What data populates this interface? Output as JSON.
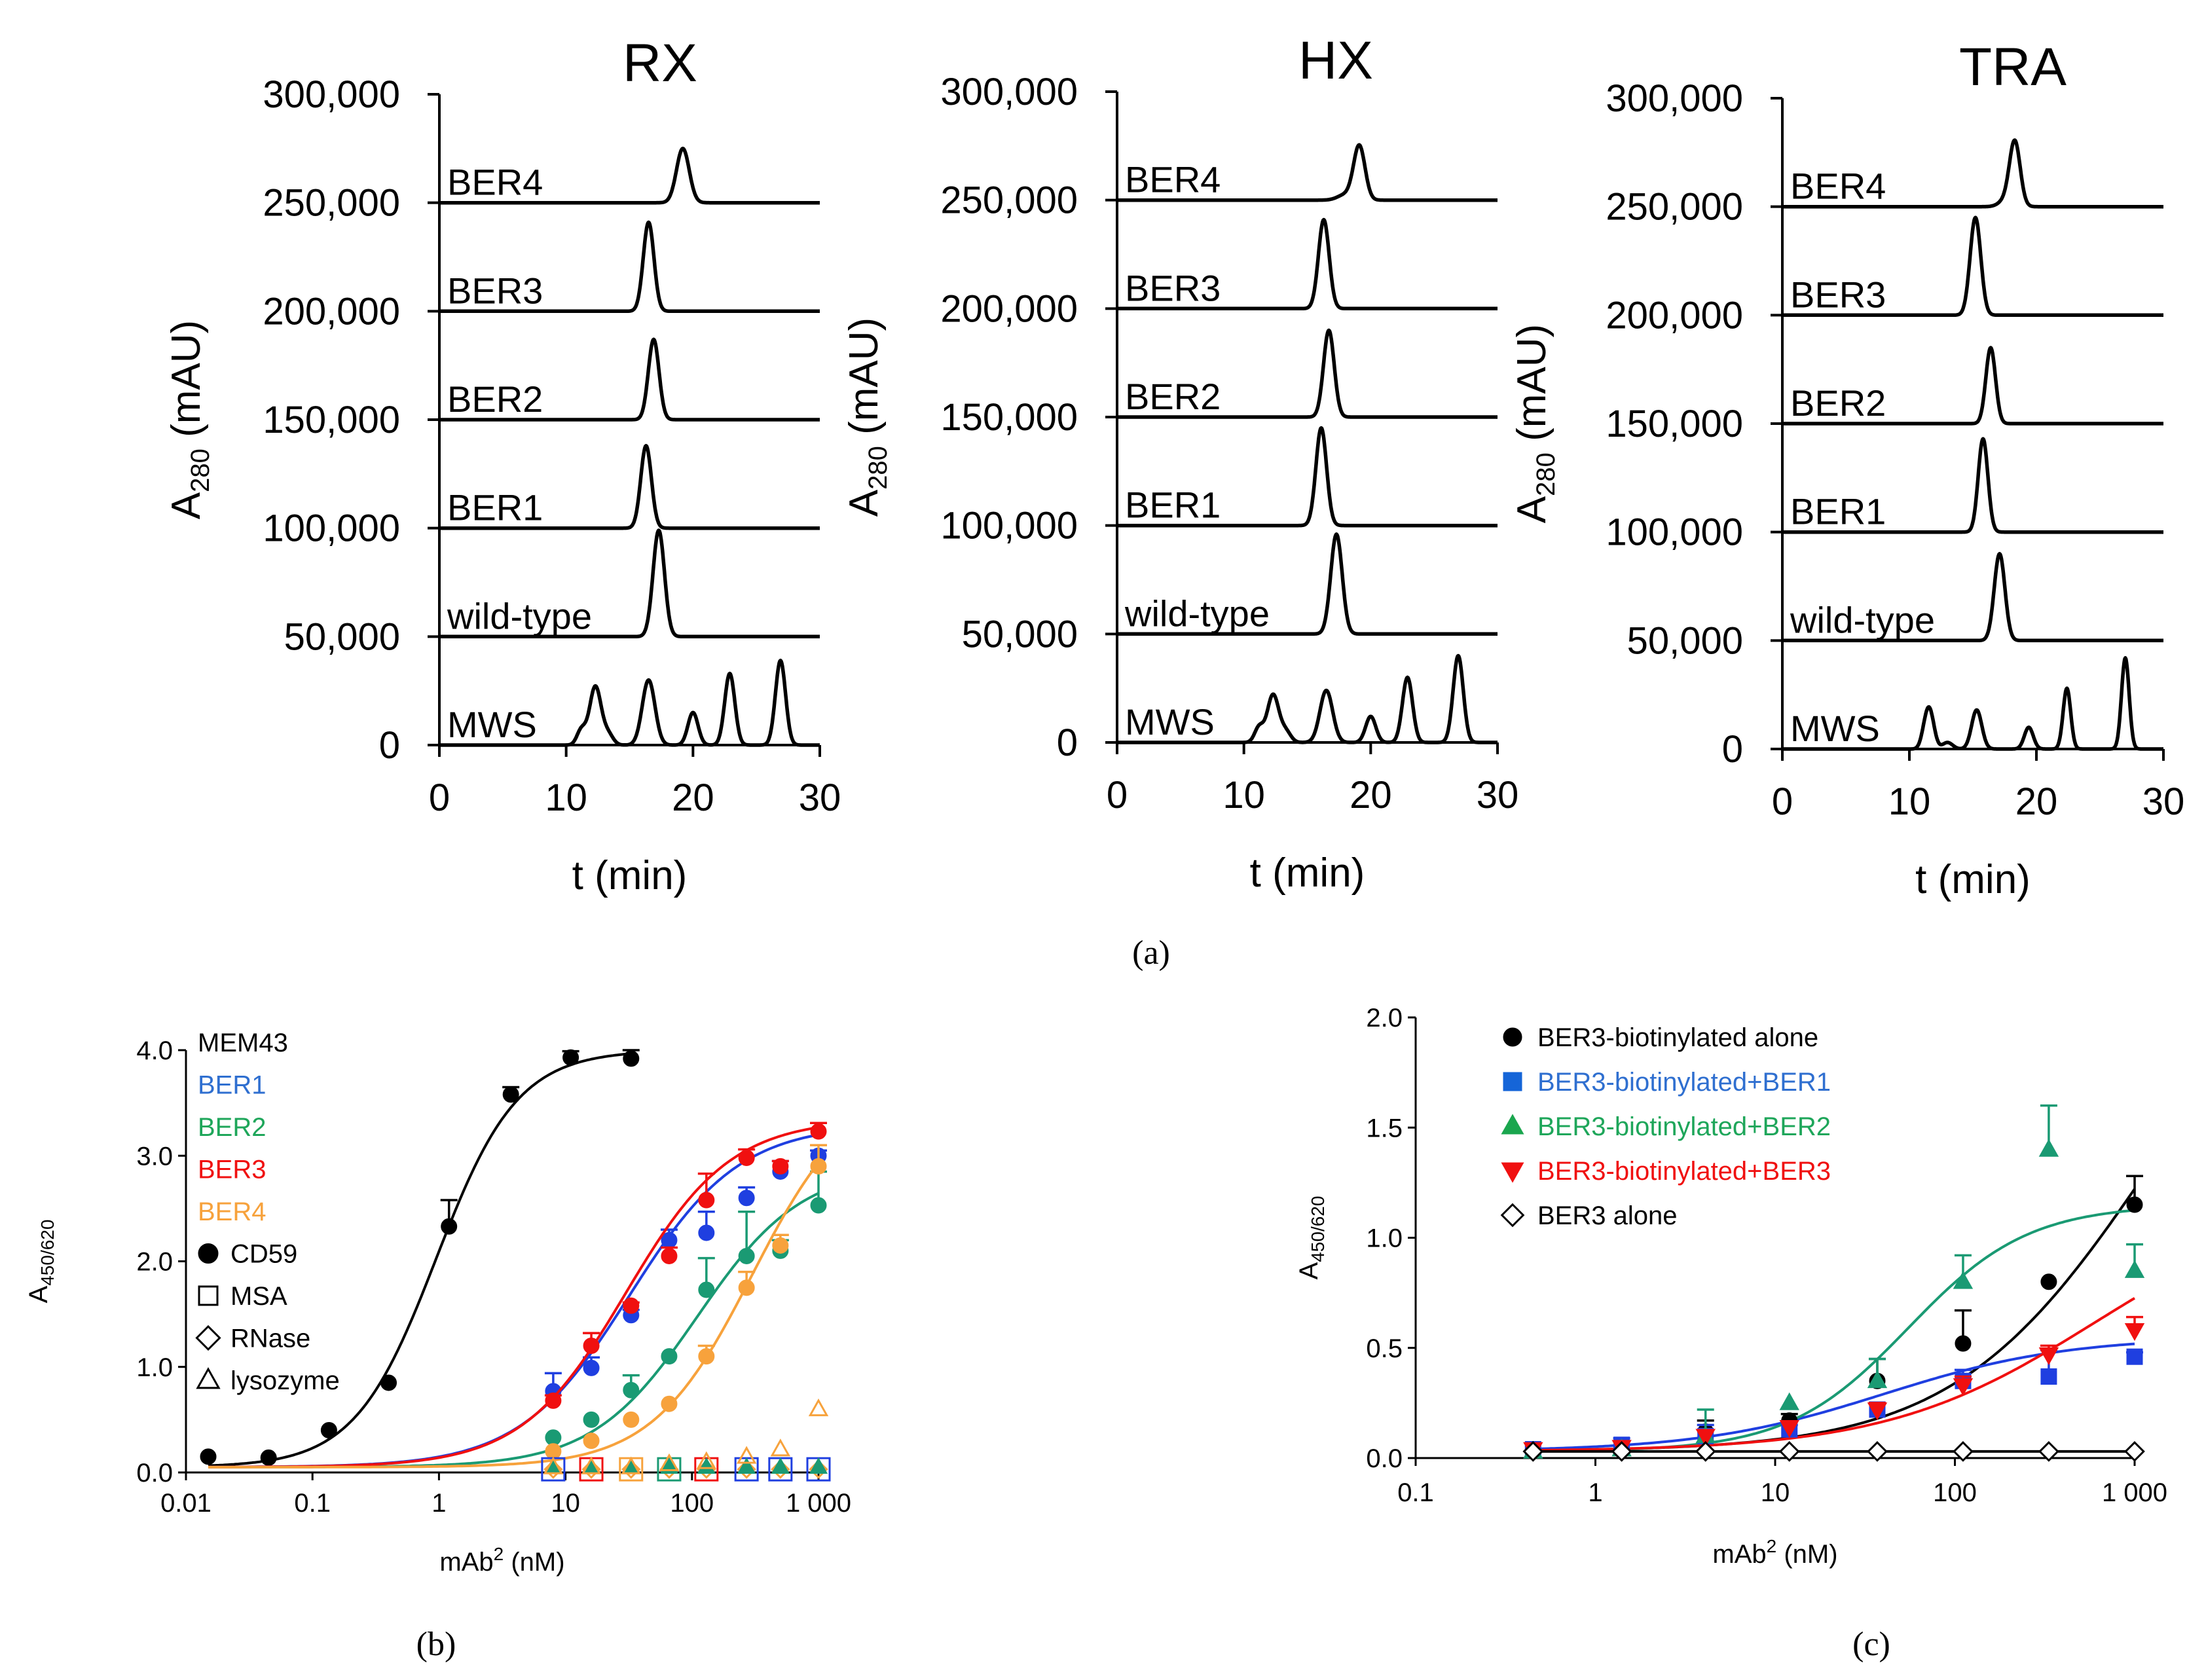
{
  "figure": {
    "panel_a_label": "(a)",
    "panel_b_label": "(b)",
    "panel_c_label": "(c)"
  },
  "colors": {
    "black": "#000000",
    "blue": "#1f3fe0",
    "green": "#1a9a73",
    "red": "#f01010",
    "orange": "#f7a23c",
    "legend_blue": "#2f6fd0",
    "legend_green": "#1ea65a",
    "marker_blue": "#1565d8",
    "marker_green": "#1aa64e"
  },
  "chart_data": [
    {
      "id": "a-rx",
      "type": "line",
      "title": "RX",
      "xlabel": "t (min)",
      "ylabel_main": "A",
      "ylabel_sub": "280",
      "ylabel_unit": " (mAU)",
      "xlim": [
        0,
        30
      ],
      "ylim": [
        0,
        300000
      ],
      "xticks": [
        "0",
        "10",
        "20",
        "30"
      ],
      "yticks": [
        "0",
        "50,000",
        "100,000",
        "150,000",
        "200,000",
        "250,000",
        "300,000"
      ],
      "traces": [
        {
          "name": "MWS",
          "baseline": 0,
          "peaks": [
            [
              11.2,
              7000,
              0.35
            ],
            [
              12.3,
              27000,
              0.45
            ],
            [
              13.3,
              5000,
              0.4
            ],
            [
              16.5,
              30000,
              0.5
            ],
            [
              20.0,
              15000,
              0.4
            ],
            [
              22.9,
              33000,
              0.4
            ],
            [
              26.9,
              39000,
              0.4
            ]
          ]
        },
        {
          "name": "wild-type",
          "baseline": 50000,
          "peaks": [
            [
              17.3,
              49000,
              0.45
            ]
          ]
        },
        {
          "name": "BER1",
          "baseline": 100000,
          "peaks": [
            [
              16.3,
              38000,
              0.42
            ]
          ]
        },
        {
          "name": "BER2",
          "baseline": 150000,
          "peaks": [
            [
              16.9,
              37000,
              0.42
            ]
          ]
        },
        {
          "name": "BER3",
          "baseline": 200000,
          "peaks": [
            [
              16.5,
              41000,
              0.42
            ]
          ]
        },
        {
          "name": "BER4",
          "baseline": 250000,
          "peaks": [
            [
              19.2,
              25000,
              0.5
            ]
          ]
        }
      ]
    },
    {
      "id": "a-hx",
      "type": "line",
      "title": "HX",
      "xlabel": "t (min)",
      "ylabel_main": "A",
      "ylabel_sub": "280",
      "ylabel_unit": " (mAU)",
      "xlim": [
        0,
        30
      ],
      "ylim": [
        0,
        300000
      ],
      "xticks": [
        "0",
        "10",
        "20",
        "30"
      ],
      "yticks": [
        "0",
        "50,000",
        "100,000",
        "150,000",
        "200,000",
        "250,000",
        "300,000"
      ],
      "traces": [
        {
          "name": "MWS",
          "baseline": 0,
          "peaks": [
            [
              11.2,
              7000,
              0.35
            ],
            [
              12.3,
              22000,
              0.45
            ],
            [
              13.3,
              5000,
              0.4
            ],
            [
              16.5,
              24000,
              0.5
            ],
            [
              20.0,
              12000,
              0.4
            ],
            [
              22.9,
              30000,
              0.4
            ],
            [
              26.9,
              40000,
              0.4
            ]
          ]
        },
        {
          "name": "wild-type",
          "baseline": 50000,
          "peaks": [
            [
              17.3,
              46000,
              0.45
            ]
          ]
        },
        {
          "name": "BER1",
          "baseline": 100000,
          "peaks": [
            [
              16.1,
              45000,
              0.42
            ]
          ]
        },
        {
          "name": "BER2",
          "baseline": 150000,
          "peaks": [
            [
              16.7,
              40000,
              0.42
            ]
          ]
        },
        {
          "name": "BER3",
          "baseline": 200000,
          "peaks": [
            [
              16.3,
              41000,
              0.42
            ]
          ]
        },
        {
          "name": "BER4",
          "baseline": 250000,
          "peaks": [
            [
              18.0,
              2500,
              0.6
            ],
            [
              19.1,
              25000,
              0.45
            ]
          ]
        }
      ]
    },
    {
      "id": "a-tra",
      "type": "line",
      "title": "TRA",
      "xlabel": "t (min)",
      "ylabel_main": "A",
      "ylabel_sub": "280",
      "ylabel_unit": " (mAU)",
      "xlim": [
        0,
        30
      ],
      "ylim": [
        0,
        300000
      ],
      "xticks": [
        "0",
        "10",
        "20",
        "30"
      ],
      "yticks": [
        "0",
        "50,000",
        "100,000",
        "150,000",
        "200,000",
        "250,000",
        "300,000"
      ],
      "traces": [
        {
          "name": "MWS",
          "baseline": 0,
          "peaks": [
            [
              11.2,
              5000,
              0.3
            ],
            [
              11.6,
              17000,
              0.35
            ],
            [
              13.0,
              3000,
              0.4
            ],
            [
              15.3,
              18000,
              0.4
            ],
            [
              19.4,
              10000,
              0.35
            ],
            [
              22.4,
              28000,
              0.3
            ],
            [
              27.0,
              42000,
              0.3
            ]
          ]
        },
        {
          "name": "wild-type",
          "baseline": 50000,
          "peaks": [
            [
              17.1,
              40000,
              0.42
            ]
          ]
        },
        {
          "name": "BER1",
          "baseline": 100000,
          "peaks": [
            [
              15.8,
              43000,
              0.38
            ]
          ]
        },
        {
          "name": "BER2",
          "baseline": 150000,
          "peaks": [
            [
              16.4,
              35000,
              0.38
            ]
          ]
        },
        {
          "name": "BER3",
          "baseline": 200000,
          "peaks": [
            [
              15.2,
              45000,
              0.42
            ]
          ]
        },
        {
          "name": "BER4",
          "baseline": 250000,
          "peaks": [
            [
              17.5,
              2500,
              0.5
            ],
            [
              18.3,
              30000,
              0.42
            ]
          ]
        }
      ]
    },
    {
      "id": "b",
      "type": "scatter",
      "title": "",
      "xlabel_main": "mAb",
      "xlabel_sup": "2",
      "xlabel_unit": " (nM)",
      "ylabel_main": "A",
      "ylabel_sub": "450/620",
      "xscale": "log",
      "xlim": [
        0.01,
        1000
      ],
      "ylim": [
        0,
        4.0
      ],
      "xticks": [
        "0.01",
        "0.1",
        "1",
        "10",
        "100",
        "1 000"
      ],
      "yticks": [
        "0.0",
        "1.0",
        "2.0",
        "3.0",
        "4.0"
      ],
      "legend": [
        {
          "label": "MEM43",
          "color": "black",
          "marker": "none"
        },
        {
          "label": "BER1",
          "color": "legend_blue",
          "marker": "none"
        },
        {
          "label": "BER2",
          "color": "legend_green",
          "marker": "none"
        },
        {
          "label": "BER3",
          "color": "red",
          "marker": "none"
        },
        {
          "label": "BER4",
          "color": "orange",
          "marker": "none"
        },
        {
          "label": "CD59",
          "color": "black",
          "marker": "circle"
        },
        {
          "label": "MSA",
          "color": "black",
          "marker": "square"
        },
        {
          "label": "RNase",
          "color": "black",
          "marker": "diamond"
        },
        {
          "label": "lysozyme",
          "color": "black",
          "marker": "triangle"
        }
      ],
      "series": [
        {
          "name": "MEM43",
          "color": "black",
          "fit": {
            "bottom": 0.05,
            "top": 4.0,
            "ec50": 0.95,
            "hill": 1.35,
            "xmin": 0.015,
            "xmax": 35
          },
          "x": [
            0.015,
            0.045,
            0.135,
            0.4,
            1.2,
            3.7,
            11,
            33
          ],
          "y": [
            0.15,
            0.14,
            0.4,
            0.85,
            2.33,
            3.58,
            3.93,
            3.92
          ],
          "err": [
            0,
            0,
            0,
            0,
            0.25,
            0.07,
            0.06,
            0.08
          ]
        },
        {
          "name": "BER1",
          "color": "blue",
          "fit": {
            "bottom": 0.05,
            "top": 3.3,
            "ec50": 32,
            "hill": 1.0,
            "xmin": 0.015,
            "xmax": 1000
          },
          "x": [
            8,
            16,
            33,
            66,
            130,
            270,
            500,
            1000
          ],
          "y": [
            0.77,
            0.99,
            1.49,
            2.2,
            2.27,
            2.6,
            2.85,
            3.0
          ],
          "err": [
            0.17,
            0.1,
            0.05,
            0.1,
            0.2,
            0.1,
            0.1,
            0.05
          ]
        },
        {
          "name": "BER2",
          "color": "green",
          "fit": {
            "bottom": 0.05,
            "top": 2.9,
            "ec50": 110,
            "hill": 1.05,
            "xmin": 0.015,
            "xmax": 1000
          },
          "x": [
            8,
            16,
            33,
            66,
            130,
            270,
            500,
            1000
          ],
          "y": [
            0.33,
            0.5,
            0.78,
            1.1,
            1.73,
            2.05,
            2.1,
            2.53
          ],
          "err": [
            0,
            0,
            0.14,
            0,
            0.3,
            0.42,
            0.1,
            0.32
          ]
        },
        {
          "name": "BER3",
          "color": "red",
          "fit": {
            "bottom": 0.05,
            "top": 3.35,
            "ec50": 30,
            "hill": 1.05,
            "xmin": 0.015,
            "xmax": 1000
          },
          "x": [
            8,
            16,
            33,
            66,
            130,
            270,
            500,
            1000
          ],
          "y": [
            0.68,
            1.2,
            1.58,
            2.05,
            2.58,
            2.98,
            2.9,
            3.23
          ],
          "err": [
            0.05,
            0.12,
            0.03,
            0.08,
            0.25,
            0.08,
            0.05,
            0.08
          ]
        },
        {
          "name": "BER4",
          "color": "orange",
          "fit": {
            "bottom": 0.05,
            "top": 3.7,
            "ec50": 300,
            "hill": 1.1,
            "xmin": 0.015,
            "xmax": 1000
          },
          "x": [
            8,
            16,
            33,
            66,
            130,
            270,
            500,
            1000
          ],
          "y": [
            0.2,
            0.3,
            0.5,
            0.65,
            1.1,
            1.75,
            2.15,
            2.9
          ],
          "err": [
            0,
            0,
            0,
            0,
            0.1,
            0.15,
            0.1,
            0.2
          ]
        }
      ],
      "controls": {
        "x": [
          8,
          16,
          33,
          66,
          130,
          270,
          500,
          1000
        ],
        "squares": [
          "blue",
          "red",
          "orange",
          "green",
          "red",
          "blue",
          "blue",
          "blue"
        ],
        "triangles_y": [
          0.05,
          0.05,
          0.05,
          0.08,
          0.1,
          0.15,
          0.22,
          0.6
        ],
        "diamond_y": 0.03
      }
    },
    {
      "id": "c",
      "type": "scatter",
      "title": "",
      "xlabel_main": "mAb",
      "xlabel_sup": "2",
      "xlabel_unit": " (nM)",
      "ylabel_main": "A",
      "ylabel_sub": "450/620",
      "xscale": "log",
      "xlim": [
        0.1,
        1000
      ],
      "ylim": [
        0,
        2.0
      ],
      "xticks": [
        "0.1",
        "1",
        "10",
        "100",
        "1 000"
      ],
      "yticks": [
        "0.0",
        "0.5",
        "1.0",
        "1.5",
        "2.0"
      ],
      "legend": [
        {
          "label": "BER3-biotinylated alone",
          "color": "black",
          "text_color": "black",
          "marker": "circle"
        },
        {
          "label": "BER3-biotinylated+BER1",
          "color": "marker_blue",
          "text_color": "legend_blue",
          "marker": "square"
        },
        {
          "label": "BER3-biotinylated+BER2",
          "color": "marker_green",
          "text_color": "legend_green",
          "marker": "triangle"
        },
        {
          "label": "BER3-biotinylated+BER3",
          "color": "red",
          "text_color": "red",
          "marker": "triangle-down"
        },
        {
          "label": "BER3 alone",
          "color": "black",
          "text_color": "black",
          "marker": "diamond"
        }
      ],
      "series": [
        {
          "name": "BER3-biotinylated alone",
          "color": "black",
          "marker": "circle",
          "fit": {
            "bottom": 0.03,
            "top": 2.6,
            "ec50": 1200,
            "hill": 0.8,
            "xmin": 0.45,
            "xmax": 1000
          },
          "x": [
            0.45,
            1.4,
            4.1,
            12,
            37,
            111,
            333,
            1000
          ],
          "y": [
            0.04,
            0.05,
            0.12,
            0.17,
            0.35,
            0.52,
            0.8,
            1.15
          ],
          "err": [
            0,
            0,
            0.05,
            0.03,
            0.1,
            0.15,
            0,
            0.13
          ]
        },
        {
          "name": "BER3-biotinylated+BER1",
          "color": "blue",
          "marker": "square",
          "fit": {
            "bottom": 0.03,
            "top": 0.55,
            "ec50": 40,
            "hill": 0.85,
            "xmin": 0.45,
            "xmax": 1000
          },
          "x": [
            0.45,
            1.4,
            4.1,
            12,
            37,
            111,
            333,
            1000
          ],
          "y": [
            0.04,
            0.06,
            0.1,
            0.13,
            0.22,
            0.35,
            0.37,
            0.46
          ],
          "err": [
            0,
            0.03,
            0.05,
            0.02,
            0.03,
            0.05,
            0.12,
            0.02
          ]
        },
        {
          "name": "BER3-biotinylated+BER2",
          "color": "green",
          "marker": "triangle",
          "fit": {
            "bottom": 0.03,
            "top": 1.15,
            "ec50": 55,
            "hill": 1.3,
            "xmin": 0.45,
            "xmax": 1000
          },
          "x": [
            0.45,
            1.4,
            4.1,
            12,
            37,
            111,
            333,
            1000
          ],
          "y": [
            0.03,
            0.04,
            0.1,
            0.25,
            0.35,
            0.8,
            1.4,
            0.85
          ],
          "err": [
            0,
            0,
            0.12,
            0,
            0.1,
            0.12,
            0.2,
            0.12
          ]
        },
        {
          "name": "BER3-biotinylated+BER3",
          "color": "red",
          "marker": "triangle-down",
          "fit": {
            "bottom": 0.03,
            "top": 1.2,
            "ec50": 600,
            "hill": 0.75,
            "xmin": 0.45,
            "xmax": 1000
          },
          "x": [
            0.45,
            1.4,
            4.1,
            12,
            37,
            111,
            333,
            1000
          ],
          "y": [
            0.04,
            0.05,
            0.1,
            0.14,
            0.22,
            0.33,
            0.47,
            0.58
          ],
          "err": [
            0,
            0,
            0,
            0,
            0.03,
            0.04,
            0.04,
            0.06
          ]
        },
        {
          "name": "BER3 alone",
          "color": "black",
          "marker": "diamond",
          "line": "flat",
          "flat_y": 0.03,
          "x": [
            0.45,
            1.4,
            4.1,
            12,
            37,
            111,
            333,
            1000
          ],
          "y": [
            0.03,
            0.03,
            0.03,
            0.03,
            0.03,
            0.03,
            0.03,
            0.03
          ],
          "err": [
            0,
            0,
            0,
            0,
            0,
            0,
            0,
            0
          ]
        }
      ]
    }
  ]
}
